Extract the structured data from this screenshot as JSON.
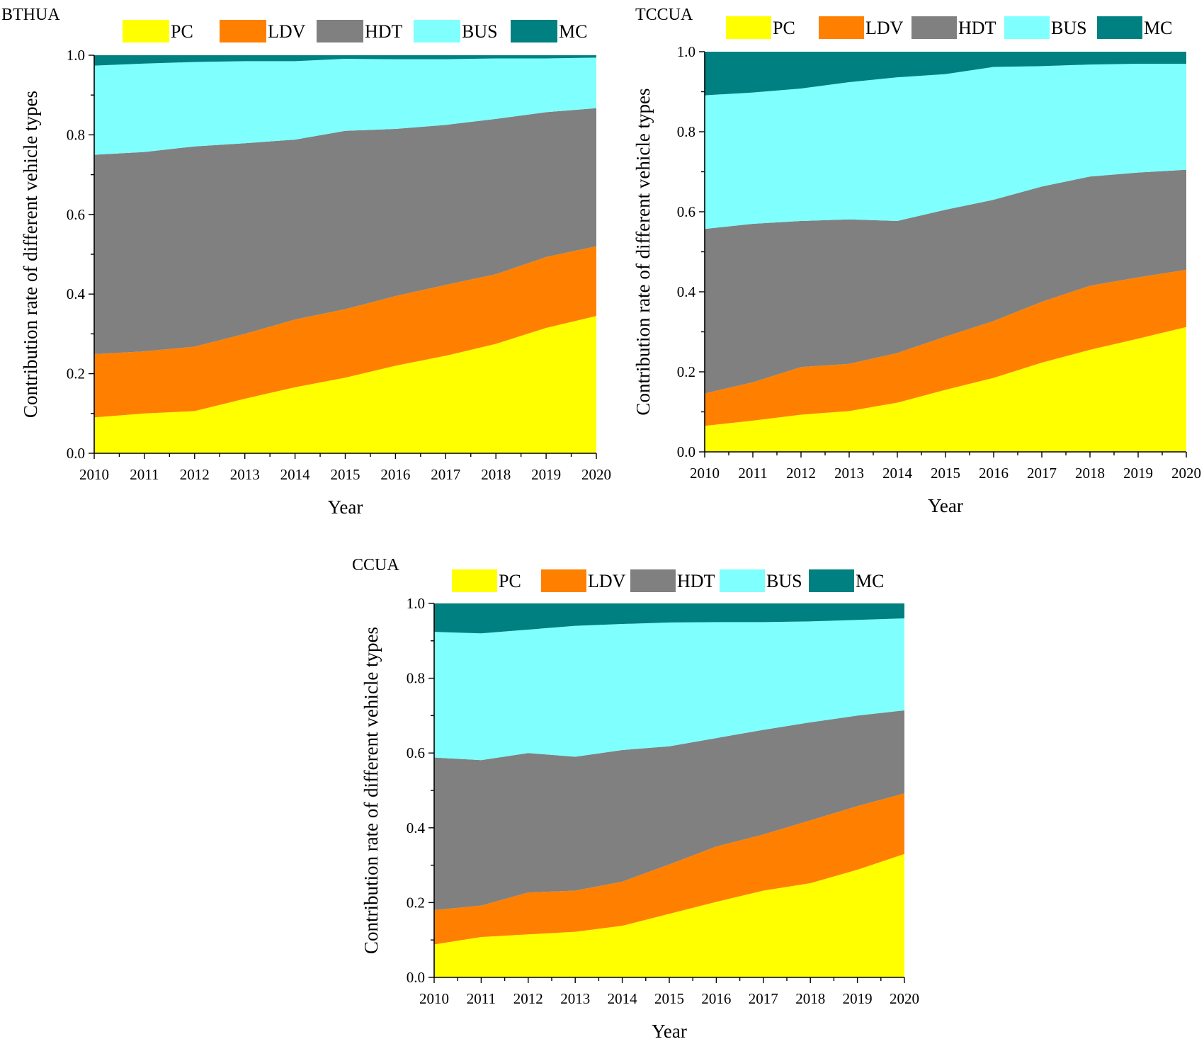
{
  "colors": {
    "PC": "#ffff00",
    "LDV": "#ff8000",
    "HDT": "#808080",
    "BUS": "#80ffff",
    "MC": "#008080"
  },
  "legend": [
    "PC",
    "LDV",
    "HDT",
    "BUS",
    "MC"
  ],
  "chart_data": [
    {
      "type": "area",
      "stacked": true,
      "title": "BTHUA",
      "xlabel": "Year",
      "ylabel": "Contribution rate of different vehicle types",
      "xlim": [
        2010,
        2020
      ],
      "ylim": [
        0,
        1
      ],
      "x": [
        2010,
        2011,
        2012,
        2013,
        2014,
        2015,
        2016,
        2017,
        2018,
        2019,
        2020
      ],
      "y_ticks": [
        "0.0",
        "0.2",
        "0.4",
        "0.6",
        "0.8",
        "1.0"
      ],
      "x_ticks": [
        "2010",
        "2011",
        "2012",
        "2013",
        "2014",
        "2015",
        "2016",
        "2017",
        "2018",
        "2019",
        "2020"
      ],
      "series": [
        {
          "name": "PC",
          "values": [
            0.09,
            0.1,
            0.106,
            0.137,
            0.166,
            0.19,
            0.22,
            0.245,
            0.275,
            0.315,
            0.345
          ]
        },
        {
          "name": "LDV",
          "values": [
            0.159,
            0.156,
            0.162,
            0.163,
            0.17,
            0.172,
            0.175,
            0.178,
            0.175,
            0.178,
            0.175
          ]
        },
        {
          "name": "HDT",
          "values": [
            0.501,
            0.501,
            0.503,
            0.479,
            0.452,
            0.448,
            0.42,
            0.402,
            0.39,
            0.364,
            0.347
          ]
        },
        {
          "name": "BUS",
          "values": [
            0.224,
            0.222,
            0.212,
            0.206,
            0.197,
            0.181,
            0.175,
            0.165,
            0.152,
            0.135,
            0.127
          ]
        },
        {
          "name": "MC",
          "values": [
            0.026,
            0.021,
            0.017,
            0.015,
            0.015,
            0.009,
            0.01,
            0.01,
            0.008,
            0.008,
            0.006
          ]
        }
      ]
    },
    {
      "type": "area",
      "stacked": true,
      "title": "TCCUA",
      "xlabel": "Year",
      "ylabel": "Contribution rate of different vehicle types",
      "xlim": [
        2010,
        2020
      ],
      "ylim": [
        0,
        1
      ],
      "x": [
        2010,
        2011,
        2012,
        2013,
        2014,
        2015,
        2016,
        2017,
        2018,
        2019,
        2020
      ],
      "y_ticks": [
        "0.0",
        "0.2",
        "0.4",
        "0.6",
        "0.8",
        "1.0"
      ],
      "x_ticks": [
        "2010",
        "2011",
        "2012",
        "2013",
        "2014",
        "2015",
        "2016",
        "2017",
        "2018",
        "2019",
        "2020"
      ],
      "series": [
        {
          "name": "PC",
          "values": [
            0.065,
            0.078,
            0.093,
            0.102,
            0.123,
            0.155,
            0.185,
            0.223,
            0.255,
            0.283,
            0.312
          ]
        },
        {
          "name": "LDV",
          "values": [
            0.081,
            0.096,
            0.119,
            0.118,
            0.124,
            0.133,
            0.142,
            0.152,
            0.16,
            0.153,
            0.143
          ]
        },
        {
          "name": "HDT",
          "values": [
            0.411,
            0.396,
            0.365,
            0.361,
            0.33,
            0.317,
            0.303,
            0.288,
            0.273,
            0.262,
            0.25
          ]
        },
        {
          "name": "BUS",
          "values": [
            0.334,
            0.328,
            0.331,
            0.343,
            0.359,
            0.339,
            0.332,
            0.301,
            0.28,
            0.272,
            0.265
          ]
        },
        {
          "name": "MC",
          "values": [
            0.109,
            0.102,
            0.092,
            0.076,
            0.064,
            0.056,
            0.038,
            0.036,
            0.032,
            0.03,
            0.03
          ]
        }
      ]
    },
    {
      "type": "area",
      "stacked": true,
      "title": "CCUA",
      "xlabel": "Year",
      "ylabel": "Contribution rate of different vehicle types",
      "xlim": [
        2010,
        2020
      ],
      "ylim": [
        0,
        1
      ],
      "x": [
        2010,
        2011,
        2012,
        2013,
        2014,
        2015,
        2016,
        2017,
        2018,
        2019,
        2020
      ],
      "y_ticks": [
        "0.0",
        "0.2",
        "0.4",
        "0.6",
        "0.8",
        "1.0"
      ],
      "x_ticks": [
        "2010",
        "2011",
        "2012",
        "2013",
        "2014",
        "2015",
        "2016",
        "2017",
        "2018",
        "2019",
        "2020"
      ],
      "series": [
        {
          "name": "PC",
          "values": [
            0.088,
            0.108,
            0.115,
            0.122,
            0.138,
            0.17,
            0.202,
            0.232,
            0.252,
            0.288,
            0.33
          ]
        },
        {
          "name": "LDV",
          "values": [
            0.092,
            0.084,
            0.112,
            0.11,
            0.118,
            0.132,
            0.148,
            0.15,
            0.168,
            0.17,
            0.162
          ]
        },
        {
          "name": "HDT",
          "values": [
            0.408,
            0.389,
            0.373,
            0.358,
            0.352,
            0.316,
            0.29,
            0.28,
            0.262,
            0.242,
            0.222
          ]
        },
        {
          "name": "BUS",
          "values": [
            0.336,
            0.339,
            0.33,
            0.35,
            0.337,
            0.331,
            0.31,
            0.288,
            0.27,
            0.256,
            0.246
          ]
        },
        {
          "name": "MC",
          "values": [
            0.076,
            0.08,
            0.07,
            0.06,
            0.055,
            0.051,
            0.05,
            0.05,
            0.048,
            0.044,
            0.04
          ]
        }
      ]
    }
  ]
}
